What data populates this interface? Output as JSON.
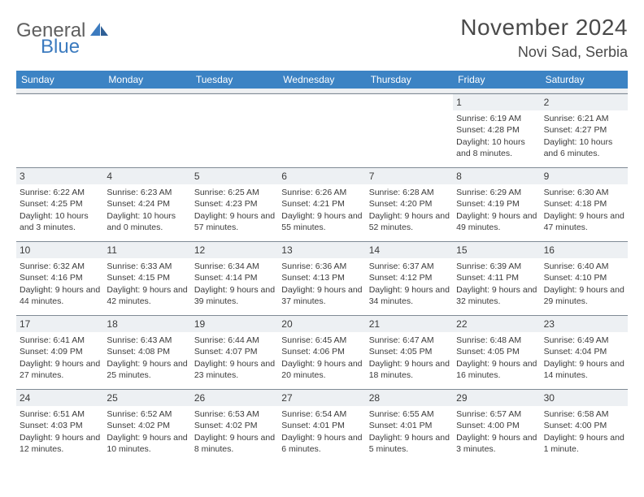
{
  "logo": {
    "part1": "General",
    "part2": "Blue"
  },
  "title": "November 2024",
  "location": "Novi Sad, Serbia",
  "colors": {
    "header_bg": "#3c83c4",
    "header_text": "#ffffff",
    "daynum_bg": "#edf0f3",
    "text": "#3b3b3b",
    "logo_gray": "#5f5f5f",
    "logo_blue": "#3c7bbf",
    "rule": "#7f8a95"
  },
  "weekdays": [
    "Sunday",
    "Monday",
    "Tuesday",
    "Wednesday",
    "Thursday",
    "Friday",
    "Saturday"
  ],
  "weeks": [
    [
      null,
      null,
      null,
      null,
      null,
      {
        "n": "1",
        "sunrise": "Sunrise: 6:19 AM",
        "sunset": "Sunset: 4:28 PM",
        "daylight": "Daylight: 10 hours and 8 minutes."
      },
      {
        "n": "2",
        "sunrise": "Sunrise: 6:21 AM",
        "sunset": "Sunset: 4:27 PM",
        "daylight": "Daylight: 10 hours and 6 minutes."
      }
    ],
    [
      {
        "n": "3",
        "sunrise": "Sunrise: 6:22 AM",
        "sunset": "Sunset: 4:25 PM",
        "daylight": "Daylight: 10 hours and 3 minutes."
      },
      {
        "n": "4",
        "sunrise": "Sunrise: 6:23 AM",
        "sunset": "Sunset: 4:24 PM",
        "daylight": "Daylight: 10 hours and 0 minutes."
      },
      {
        "n": "5",
        "sunrise": "Sunrise: 6:25 AM",
        "sunset": "Sunset: 4:23 PM",
        "daylight": "Daylight: 9 hours and 57 minutes."
      },
      {
        "n": "6",
        "sunrise": "Sunrise: 6:26 AM",
        "sunset": "Sunset: 4:21 PM",
        "daylight": "Daylight: 9 hours and 55 minutes."
      },
      {
        "n": "7",
        "sunrise": "Sunrise: 6:28 AM",
        "sunset": "Sunset: 4:20 PM",
        "daylight": "Daylight: 9 hours and 52 minutes."
      },
      {
        "n": "8",
        "sunrise": "Sunrise: 6:29 AM",
        "sunset": "Sunset: 4:19 PM",
        "daylight": "Daylight: 9 hours and 49 minutes."
      },
      {
        "n": "9",
        "sunrise": "Sunrise: 6:30 AM",
        "sunset": "Sunset: 4:18 PM",
        "daylight": "Daylight: 9 hours and 47 minutes."
      }
    ],
    [
      {
        "n": "10",
        "sunrise": "Sunrise: 6:32 AM",
        "sunset": "Sunset: 4:16 PM",
        "daylight": "Daylight: 9 hours and 44 minutes."
      },
      {
        "n": "11",
        "sunrise": "Sunrise: 6:33 AM",
        "sunset": "Sunset: 4:15 PM",
        "daylight": "Daylight: 9 hours and 42 minutes."
      },
      {
        "n": "12",
        "sunrise": "Sunrise: 6:34 AM",
        "sunset": "Sunset: 4:14 PM",
        "daylight": "Daylight: 9 hours and 39 minutes."
      },
      {
        "n": "13",
        "sunrise": "Sunrise: 6:36 AM",
        "sunset": "Sunset: 4:13 PM",
        "daylight": "Daylight: 9 hours and 37 minutes."
      },
      {
        "n": "14",
        "sunrise": "Sunrise: 6:37 AM",
        "sunset": "Sunset: 4:12 PM",
        "daylight": "Daylight: 9 hours and 34 minutes."
      },
      {
        "n": "15",
        "sunrise": "Sunrise: 6:39 AM",
        "sunset": "Sunset: 4:11 PM",
        "daylight": "Daylight: 9 hours and 32 minutes."
      },
      {
        "n": "16",
        "sunrise": "Sunrise: 6:40 AM",
        "sunset": "Sunset: 4:10 PM",
        "daylight": "Daylight: 9 hours and 29 minutes."
      }
    ],
    [
      {
        "n": "17",
        "sunrise": "Sunrise: 6:41 AM",
        "sunset": "Sunset: 4:09 PM",
        "daylight": "Daylight: 9 hours and 27 minutes."
      },
      {
        "n": "18",
        "sunrise": "Sunrise: 6:43 AM",
        "sunset": "Sunset: 4:08 PM",
        "daylight": "Daylight: 9 hours and 25 minutes."
      },
      {
        "n": "19",
        "sunrise": "Sunrise: 6:44 AM",
        "sunset": "Sunset: 4:07 PM",
        "daylight": "Daylight: 9 hours and 23 minutes."
      },
      {
        "n": "20",
        "sunrise": "Sunrise: 6:45 AM",
        "sunset": "Sunset: 4:06 PM",
        "daylight": "Daylight: 9 hours and 20 minutes."
      },
      {
        "n": "21",
        "sunrise": "Sunrise: 6:47 AM",
        "sunset": "Sunset: 4:05 PM",
        "daylight": "Daylight: 9 hours and 18 minutes."
      },
      {
        "n": "22",
        "sunrise": "Sunrise: 6:48 AM",
        "sunset": "Sunset: 4:05 PM",
        "daylight": "Daylight: 9 hours and 16 minutes."
      },
      {
        "n": "23",
        "sunrise": "Sunrise: 6:49 AM",
        "sunset": "Sunset: 4:04 PM",
        "daylight": "Daylight: 9 hours and 14 minutes."
      }
    ],
    [
      {
        "n": "24",
        "sunrise": "Sunrise: 6:51 AM",
        "sunset": "Sunset: 4:03 PM",
        "daylight": "Daylight: 9 hours and 12 minutes."
      },
      {
        "n": "25",
        "sunrise": "Sunrise: 6:52 AM",
        "sunset": "Sunset: 4:02 PM",
        "daylight": "Daylight: 9 hours and 10 minutes."
      },
      {
        "n": "26",
        "sunrise": "Sunrise: 6:53 AM",
        "sunset": "Sunset: 4:02 PM",
        "daylight": "Daylight: 9 hours and 8 minutes."
      },
      {
        "n": "27",
        "sunrise": "Sunrise: 6:54 AM",
        "sunset": "Sunset: 4:01 PM",
        "daylight": "Daylight: 9 hours and 6 minutes."
      },
      {
        "n": "28",
        "sunrise": "Sunrise: 6:55 AM",
        "sunset": "Sunset: 4:01 PM",
        "daylight": "Daylight: 9 hours and 5 minutes."
      },
      {
        "n": "29",
        "sunrise": "Sunrise: 6:57 AM",
        "sunset": "Sunset: 4:00 PM",
        "daylight": "Daylight: 9 hours and 3 minutes."
      },
      {
        "n": "30",
        "sunrise": "Sunrise: 6:58 AM",
        "sunset": "Sunset: 4:00 PM",
        "daylight": "Daylight: 9 hours and 1 minute."
      }
    ]
  ]
}
